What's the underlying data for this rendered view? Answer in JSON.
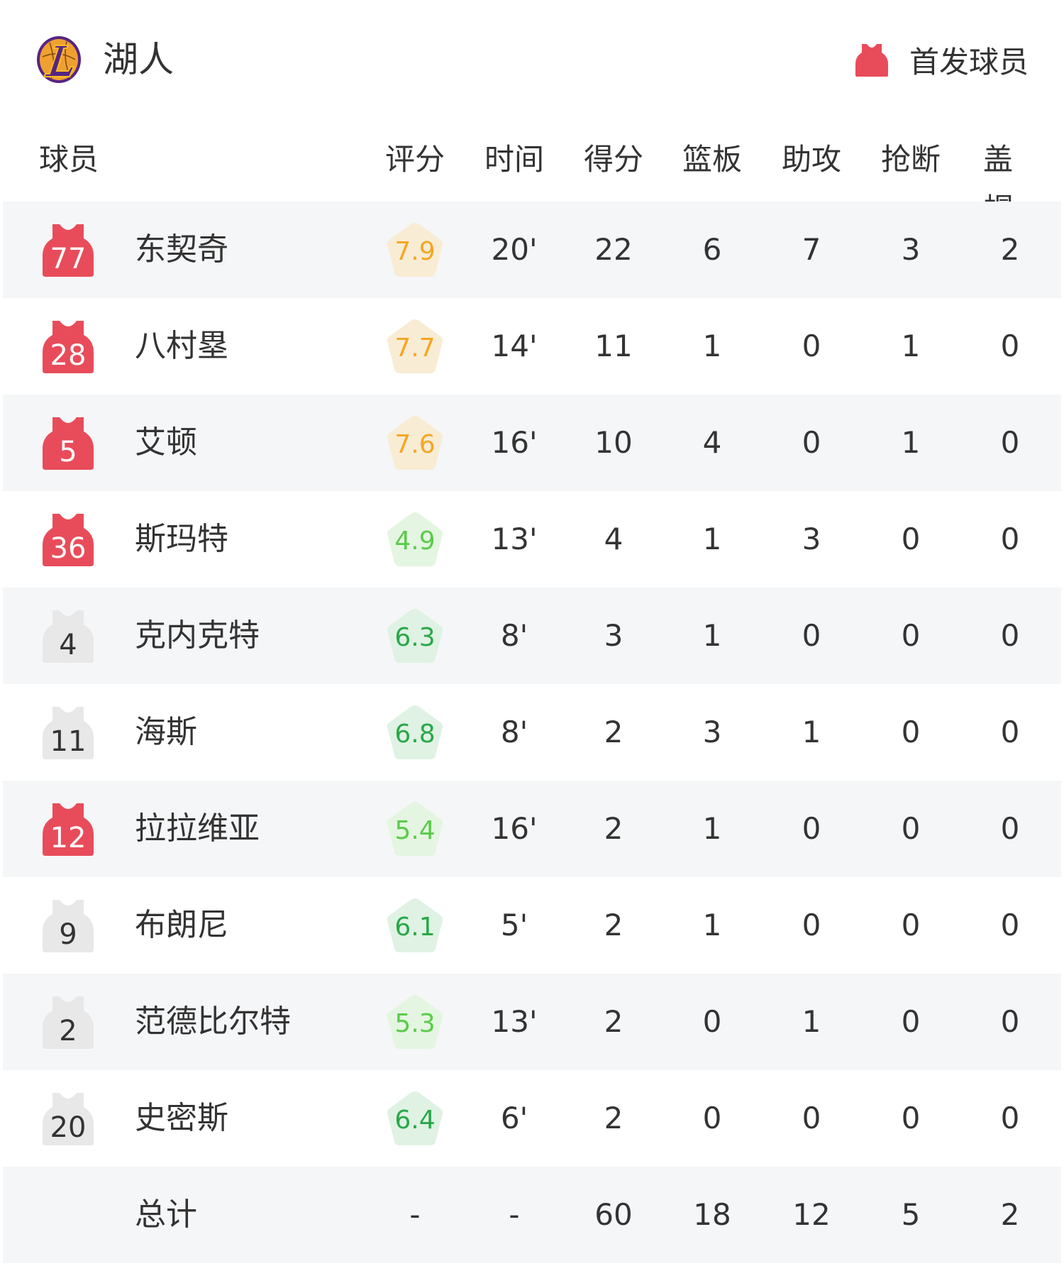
{
  "team": {
    "name": "湖人",
    "logo": "lakers-logo"
  },
  "legend": {
    "label": "首发球员",
    "icon": "jersey-icon",
    "color": "#e84c5a"
  },
  "columns": [
    "球员",
    "评分",
    "时间",
    "得分",
    "篮板",
    "助攻",
    "抢断",
    "盖帽"
  ],
  "colors": {
    "starter_jersey": "#e84c5a",
    "bench_jersey": "#e8e8e8",
    "rating_high_text": "#f5a623",
    "rating_high_bg": "#f8ecd4",
    "rating_mid_text": "#2aa748",
    "rating_mid_bg": "#dff2e4",
    "rating_low_text": "#5acb4a",
    "rating_low_bg": "#e4f6e1",
    "alt_row": "#f5f6f8"
  },
  "players": [
    {
      "number": "77",
      "name": "东契奇",
      "starter": true,
      "rating": "7.9",
      "tier": "high",
      "time": "20'",
      "pts": "22",
      "reb": "6",
      "ast": "7",
      "stl": "3",
      "blk": "2"
    },
    {
      "number": "28",
      "name": "八村塁",
      "starter": true,
      "rating": "7.7",
      "tier": "high",
      "time": "14'",
      "pts": "11",
      "reb": "1",
      "ast": "0",
      "stl": "1",
      "blk": "0"
    },
    {
      "number": "5",
      "name": "艾顿",
      "starter": true,
      "rating": "7.6",
      "tier": "high",
      "time": "16'",
      "pts": "10",
      "reb": "4",
      "ast": "0",
      "stl": "1",
      "blk": "0"
    },
    {
      "number": "36",
      "name": "斯玛特",
      "starter": true,
      "rating": "4.9",
      "tier": "low",
      "time": "13'",
      "pts": "4",
      "reb": "1",
      "ast": "3",
      "stl": "0",
      "blk": "0"
    },
    {
      "number": "4",
      "name": "克内克特",
      "starter": false,
      "rating": "6.3",
      "tier": "mid",
      "time": "8'",
      "pts": "3",
      "reb": "1",
      "ast": "0",
      "stl": "0",
      "blk": "0"
    },
    {
      "number": "11",
      "name": "海斯",
      "starter": false,
      "rating": "6.8",
      "tier": "mid",
      "time": "8'",
      "pts": "2",
      "reb": "3",
      "ast": "1",
      "stl": "0",
      "blk": "0"
    },
    {
      "number": "12",
      "name": "拉拉维亚",
      "starter": true,
      "rating": "5.4",
      "tier": "low",
      "time": "16'",
      "pts": "2",
      "reb": "1",
      "ast": "0",
      "stl": "0",
      "blk": "0"
    },
    {
      "number": "9",
      "name": "布朗尼",
      "starter": false,
      "rating": "6.1",
      "tier": "mid",
      "time": "5'",
      "pts": "2",
      "reb": "1",
      "ast": "0",
      "stl": "0",
      "blk": "0"
    },
    {
      "number": "2",
      "name": "范德比尔特",
      "starter": false,
      "rating": "5.3",
      "tier": "low",
      "time": "13'",
      "pts": "2",
      "reb": "0",
      "ast": "1",
      "stl": "0",
      "blk": "0"
    },
    {
      "number": "20",
      "name": "史密斯",
      "starter": false,
      "rating": "6.4",
      "tier": "mid",
      "time": "6'",
      "pts": "2",
      "reb": "0",
      "ast": "0",
      "stl": "0",
      "blk": "0"
    }
  ],
  "total": {
    "label": "总计",
    "rating": "-",
    "time": "-",
    "pts": "60",
    "reb": "18",
    "ast": "12",
    "stl": "5",
    "blk": "2"
  }
}
